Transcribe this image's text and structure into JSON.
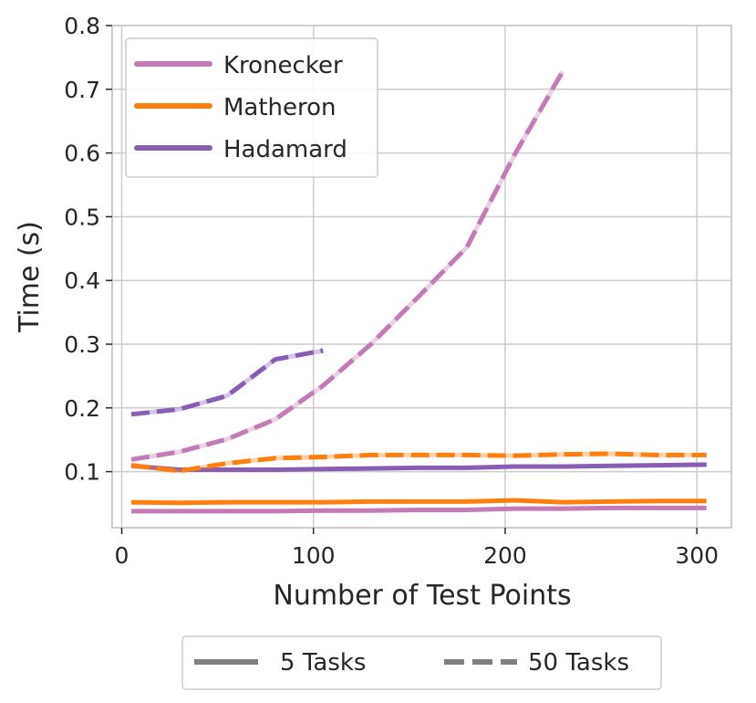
{
  "chart_data": {
    "type": "line",
    "xlabel": "Number of Test Points",
    "ylabel": "Time (s)",
    "xlim": [
      -5,
      318
    ],
    "ylim": [
      0.012,
      0.8
    ],
    "xticks": [
      0,
      100,
      200,
      300
    ],
    "yticks": [
      0.1,
      0.2,
      0.3,
      0.4,
      0.5,
      0.6,
      0.7,
      0.8
    ],
    "xtick_labels": [
      "0",
      "100",
      "200",
      "300"
    ],
    "ytick_labels": [
      "0.1",
      "0.2",
      "0.3",
      "0.4",
      "0.5",
      "0.6",
      "0.7",
      "0.8"
    ],
    "grid": true,
    "methods": [
      {
        "name": "Kronecker",
        "color": "#c47ab6"
      },
      {
        "name": "Matheron",
        "color": "#ff7f0e"
      },
      {
        "name": "Hadamard",
        "color": "#8a5db5"
      }
    ],
    "line_styles": [
      {
        "name": "5 Tasks",
        "dash": "solid",
        "color": "#808080"
      },
      {
        "name": "50 Tasks",
        "dash": "dashed",
        "color": "#808080"
      }
    ],
    "series": [
      {
        "method": "Kronecker",
        "tasks": "5 Tasks",
        "dashed": false,
        "x": [
          5,
          30,
          55,
          80,
          105,
          130,
          155,
          180,
          205,
          230,
          255,
          280,
          305
        ],
        "y": [
          0.038,
          0.038,
          0.038,
          0.038,
          0.039,
          0.039,
          0.04,
          0.04,
          0.042,
          0.042,
          0.043,
          0.043,
          0.043
        ]
      },
      {
        "method": "Matheron",
        "tasks": "5 Tasks",
        "dashed": false,
        "x": [
          5,
          30,
          55,
          80,
          105,
          130,
          155,
          180,
          205,
          230,
          255,
          280,
          305
        ],
        "y": [
          0.052,
          0.051,
          0.052,
          0.052,
          0.052,
          0.053,
          0.053,
          0.053,
          0.055,
          0.052,
          0.053,
          0.054,
          0.054
        ]
      },
      {
        "method": "Hadamard",
        "tasks": "5 Tasks",
        "dashed": false,
        "x": [
          5,
          30,
          55,
          80,
          105,
          130,
          155,
          180,
          205,
          230,
          255,
          280,
          305
        ],
        "y": [
          0.109,
          0.103,
          0.103,
          0.103,
          0.104,
          0.105,
          0.106,
          0.106,
          0.108,
          0.108,
          0.109,
          0.11,
          0.111
        ]
      },
      {
        "method": "Matheron",
        "tasks": "50 Tasks",
        "dashed": true,
        "x": [
          5,
          30,
          55,
          80,
          105,
          130,
          155,
          180,
          205,
          230,
          255,
          280,
          305
        ],
        "y": [
          0.11,
          0.101,
          0.113,
          0.121,
          0.123,
          0.126,
          0.126,
          0.126,
          0.125,
          0.127,
          0.128,
          0.126,
          0.126
        ]
      },
      {
        "method": "Hadamard",
        "tasks": "50 Tasks",
        "dashed": true,
        "x": [
          5,
          30,
          55,
          80,
          105
        ],
        "y": [
          0.19,
          0.198,
          0.219,
          0.276,
          0.29
        ]
      },
      {
        "method": "Kronecker",
        "tasks": "50 Tasks",
        "dashed": true,
        "x": [
          5,
          30,
          55,
          80,
          105,
          130,
          155,
          180,
          205,
          230
        ],
        "y": [
          0.119,
          0.131,
          0.151,
          0.182,
          0.235,
          0.3,
          0.375,
          0.452,
          0.598,
          0.728
        ]
      }
    ]
  }
}
